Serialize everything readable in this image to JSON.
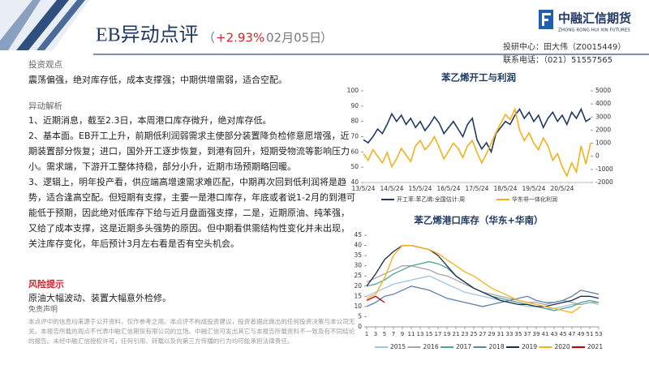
{
  "header": {
    "title": "EB异动点评",
    "paren_open": "（",
    "change": "+2.93%",
    "date": "02月05日",
    "paren_close": "）",
    "analyst": "投研中心：田大伟（Z0015449）",
    "phone": "联系电话：（021）51557565",
    "logo": "中融汇信期货",
    "logo_en": "ZHONG RONG HUI XIN FUTURES"
  },
  "left": {
    "view_heading": "投资观点",
    "view_text": "震荡偏强，绝对库存低，成本支撑强；中期供增需弱，适合空配。",
    "analysis_heading": "异动解析",
    "analysis_paragraphs": [
      "1、近期消息，截至2.3日，本周港口库存微升，绝对库存低。",
      "2、基本面。EB开工上升，前期低利润弱需求主使部分装置降负检修意愿增强，近期装置部分恢复；进口，国外开工逐步恢复，到港有回升，短期受物流等影响压力小。需求端，下游开工整体持稳，部分小升，近期市场预期略回暖。",
      "3、逻辑上，明年投产看，供应端高增速需求难匹配，中期再次回到低利润将是趋势，适合逢高空配。但短期有支撑，主要一是港口库存，年底或者说1-2月的到港可能低于预期，因此绝对低库存下给与近月盘面强支撑，二是，近期原油、纯苯强，又给了成本支撑，这是近期多头强势的原因。但中期看供需结构性变化并未出现，关注库存变化，年后预计3月左右看是否有空头机会。"
    ],
    "risk_heading": "风险提示",
    "risk_text": "原油大幅波动、装置大幅意外检修。",
    "disclaimer_heading": "免责声明",
    "disclaimer_text": "本点评中的信息均来源于公开资料，仅作参考之用。本点评不构成投资建议，投资者据此做出的任何投资决策与本公司无关。本报告所载的观点不代表中融汇信期货有限公司的立场。中融汇信可发出其它与本报告所载资料不一致及有不同结论的报告。未经中融汇信授权许可，任何引用、转载以及向第三方传播的行为均可能承担法律责任。"
  },
  "chart_data": [
    {
      "type": "line",
      "title": "苯乙烯开工与利润",
      "categories": [
        "13/5/24",
        null,
        null,
        null,
        null,
        null,
        "14/5/24",
        null,
        null,
        null,
        null,
        null,
        "15/5/24",
        null,
        null,
        null,
        null,
        null,
        "16/5/24",
        null,
        null,
        null,
        null,
        null,
        "17/5/24",
        null,
        null,
        null,
        null,
        null,
        "18/5/24",
        null,
        null,
        null,
        null,
        null,
        "19/5/24",
        null,
        null,
        null,
        null,
        null,
        "20/5/24",
        null,
        null,
        null,
        null,
        null,
        null
      ],
      "series": [
        {
          "name": "开工率:苯乙烯:全国估计:周",
          "color": "#1f3864",
          "values": [
            68,
            66,
            70,
            75,
            72,
            78,
            85,
            80,
            84,
            78,
            82,
            76,
            80,
            74,
            78,
            83,
            79,
            72,
            76,
            80,
            75,
            70,
            78,
            82,
            68,
            62,
            66,
            60,
            72,
            76,
            80,
            78,
            84,
            88,
            82,
            86,
            80,
            84,
            76,
            82,
            86,
            80,
            84,
            78,
            86,
            82,
            88,
            80,
            82
          ]
        },
        {
          "name": "华东非一体化利润",
          "color": "#f5b01a",
          "axis": "y2",
          "values": [
            200,
            -300,
            500,
            0,
            -500,
            300,
            -800,
            -200,
            600,
            100,
            -400,
            800,
            1200,
            500,
            900,
            1500,
            700,
            -200,
            400,
            1000,
            600,
            -100,
            800,
            1200,
            300,
            -500,
            200,
            1000,
            1800,
            2500,
            3200,
            2800,
            3600,
            2000,
            1200,
            1800,
            1000,
            500,
            1400,
            800,
            -300,
            200,
            -800,
            -1500,
            -500,
            -1200,
            800,
            -600,
            1000
          ]
        }
      ],
      "ylim": [
        40,
        100
      ],
      "yticks": [
        40,
        50,
        60,
        70,
        80,
        90,
        100
      ],
      "y2lim": [
        -2000,
        5000
      ],
      "y2ticks": [
        -2000,
        -1000,
        0,
        1000,
        2000,
        3000,
        4000,
        5000
      ]
    },
    {
      "type": "line",
      "title": "苯乙烯港口库存（华东+华南）",
      "x": [
        1,
        3,
        5,
        7,
        9,
        11,
        13,
        15,
        17,
        19,
        21,
        23,
        25,
        27,
        29,
        31,
        33,
        35,
        37,
        39,
        41,
        43,
        45,
        47,
        49,
        51,
        53
      ],
      "xlim": [
        1,
        53
      ],
      "xticks": [
        1,
        3,
        5,
        7,
        9,
        11,
        13,
        15,
        17,
        19,
        21,
        23,
        25,
        27,
        29,
        31,
        33,
        35,
        37,
        39,
        41,
        43,
        45,
        47,
        49,
        51,
        53
      ],
      "ylim": [
        0,
        45
      ],
      "yticks": [
        0,
        5,
        10,
        15,
        20,
        25,
        30,
        35,
        40,
        45
      ],
      "series": [
        {
          "name": "2015",
          "color": "#9dc3e6",
          "values": [
            15,
            17,
            19,
            21,
            22,
            23,
            24,
            25,
            23,
            21,
            19,
            17,
            16,
            15,
            14,
            13,
            12,
            11,
            10,
            10,
            9,
            9,
            10,
            11,
            11,
            12,
            11
          ]
        },
        {
          "name": "2016",
          "color": "#a5a5a5",
          "values": [
            22,
            24,
            26,
            28,
            30,
            30,
            29,
            28,
            26,
            25,
            23,
            21,
            19,
            17,
            16,
            15,
            14,
            13,
            12,
            12,
            11,
            12,
            13,
            12,
            11,
            12,
            12
          ]
        },
        {
          "name": "2017",
          "color": "#4ea39a",
          "values": [
            20,
            21,
            23,
            26,
            28,
            30,
            31,
            32,
            31,
            29,
            25,
            22,
            19,
            17,
            15,
            14,
            13,
            12,
            11,
            10,
            9,
            8,
            9,
            10,
            12,
            13,
            12
          ]
        },
        {
          "name": "2018",
          "color": "#5a7fb0",
          "values": [
            10,
            12,
            15,
            16,
            18,
            20,
            19,
            18,
            16,
            14,
            13,
            12,
            11,
            10,
            11,
            12,
            13,
            14,
            15,
            13,
            12,
            12,
            13,
            15,
            18,
            17,
            16
          ]
        },
        {
          "name": "2019",
          "color": "#1f2d4a",
          "values": [
            20,
            26,
            33,
            37,
            40,
            40,
            39,
            38,
            35,
            30,
            25,
            22,
            19,
            17,
            15,
            13,
            12,
            11,
            11,
            10,
            10,
            11,
            12,
            13,
            15,
            15,
            14
          ]
        },
        {
          "name": "2020",
          "color": "#f5b01a",
          "values": [
            14,
            16,
            24,
            35,
            40,
            40,
            39,
            38,
            36,
            33,
            30,
            27,
            25,
            22,
            19,
            17,
            15,
            13,
            12,
            11,
            10,
            9,
            8,
            7,
            10,
            null,
            null
          ]
        },
        {
          "name": "2021",
          "color": "#c00000",
          "values": [
            13,
            15,
            12,
            null,
            null,
            null,
            null,
            null,
            null,
            null,
            null,
            null,
            null,
            null,
            null,
            null,
            null,
            null,
            null,
            null,
            null,
            null,
            null,
            null,
            null,
            null,
            null
          ]
        }
      ]
    }
  ]
}
